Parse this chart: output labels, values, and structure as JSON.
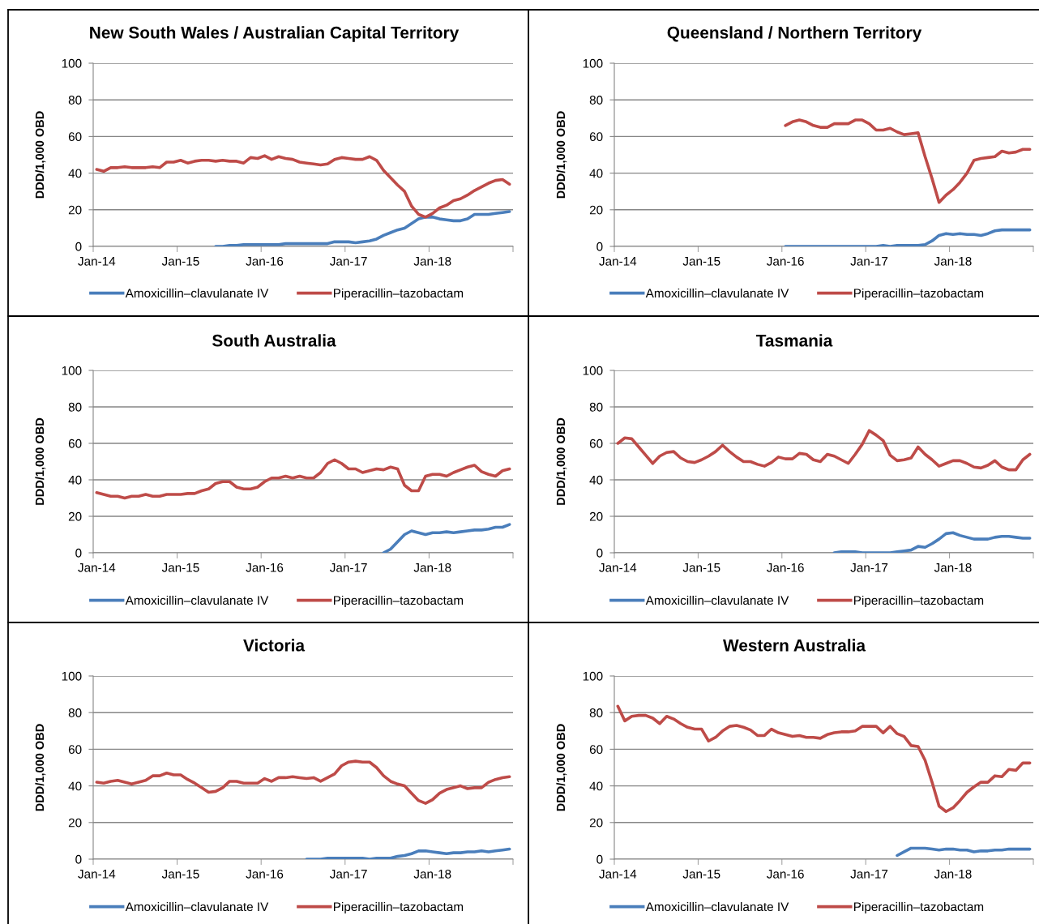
{
  "chart_data": [
    {
      "type": "line",
      "title": "New South Wales / Australian Capital Territory",
      "ylabel": "DDD/1,000 OBD",
      "categories": [
        "Jan-14",
        null,
        null,
        null,
        null,
        null,
        null,
        null,
        null,
        null,
        null,
        null,
        "Jan-15",
        null,
        null,
        null,
        null,
        null,
        null,
        null,
        null,
        null,
        null,
        null,
        "Jan-16",
        null,
        null,
        null,
        null,
        null,
        null,
        null,
        null,
        null,
        null,
        null,
        "Jan-17",
        null,
        null,
        null,
        null,
        null,
        null,
        null,
        null,
        null,
        null,
        null,
        "Jan-18",
        null,
        null,
        null,
        null,
        null,
        null,
        null,
        null,
        null,
        null,
        null
      ],
      "series": [
        {
          "name": "Amoxicillin–clavulanate IV",
          "color": "#4a7ebb",
          "values": [
            null,
            null,
            null,
            null,
            null,
            null,
            null,
            null,
            null,
            null,
            null,
            null,
            null,
            null,
            null,
            null,
            null,
            0,
            0,
            0.5,
            0.5,
            1,
            1,
            1,
            1,
            1,
            1,
            1.5,
            1.5,
            1.5,
            1.5,
            1.5,
            1.5,
            1.5,
            2.5,
            2.5,
            2.5,
            2,
            2.5,
            3,
            4,
            6,
            7.5,
            9,
            10,
            12.5,
            15,
            16,
            16,
            15,
            14.5,
            14,
            14,
            15,
            17.5,
            17.5,
            17.5,
            18,
            18.5,
            19
          ]
        },
        {
          "name": "Piperacillin–tazobactam",
          "color": "#be4b48",
          "values": [
            42,
            41,
            43,
            43,
            43.5,
            43,
            43,
            43,
            43.5,
            43,
            46,
            46,
            47,
            45.5,
            46.5,
            47,
            47,
            46.5,
            47,
            46.5,
            46.5,
            45.5,
            48.5,
            48,
            49.5,
            47.5,
            49,
            48,
            47.5,
            46,
            45.5,
            45,
            44.5,
            45,
            47.5,
            48.5,
            48,
            47.5,
            47.5,
            49,
            47,
            41.5,
            37.5,
            33.5,
            30,
            22,
            17.5,
            16,
            18,
            21,
            22.5,
            25,
            26,
            28,
            30.5,
            32.5,
            34.5,
            36,
            36.5,
            34
          ]
        }
      ],
      "ylim": [
        0,
        100
      ],
      "yticks": [
        0,
        20,
        40,
        60,
        80,
        100
      ],
      "grid": "y",
      "legend": "bottom"
    },
    {
      "type": "line",
      "title": "Queensland / Northern Territory",
      "ylabel": "DDD/1,000 OBD",
      "categories": [
        "Jan-14",
        null,
        null,
        null,
        null,
        null,
        null,
        null,
        null,
        null,
        null,
        null,
        "Jan-15",
        null,
        null,
        null,
        null,
        null,
        null,
        null,
        null,
        null,
        null,
        null,
        "Jan-16",
        null,
        null,
        null,
        null,
        null,
        null,
        null,
        null,
        null,
        null,
        null,
        "Jan-17",
        null,
        null,
        null,
        null,
        null,
        null,
        null,
        null,
        null,
        null,
        null,
        "Jan-18",
        null,
        null,
        null,
        null,
        null,
        null,
        null,
        null,
        null,
        null,
        null
      ],
      "series": [
        {
          "name": "Amoxicillin–clavulanate IV",
          "color": "#4a7ebb",
          "values": [
            null,
            null,
            null,
            null,
            null,
            null,
            null,
            null,
            null,
            null,
            null,
            null,
            null,
            null,
            null,
            null,
            null,
            null,
            null,
            null,
            null,
            null,
            null,
            null,
            0,
            0,
            0,
            0,
            0,
            0,
            0,
            0,
            0,
            0,
            0,
            0,
            0,
            0,
            0.5,
            0,
            0.5,
            0.5,
            0.5,
            0.5,
            1,
            3,
            6,
            7,
            6.5,
            7,
            6.5,
            6.5,
            6,
            7,
            8.5,
            9,
            9,
            9,
            9,
            9
          ]
        },
        {
          "name": "Piperacillin–tazobactam",
          "color": "#be4b48",
          "values": [
            null,
            null,
            null,
            null,
            null,
            null,
            null,
            null,
            null,
            null,
            null,
            null,
            null,
            null,
            null,
            null,
            null,
            null,
            null,
            null,
            null,
            null,
            null,
            null,
            66,
            68,
            69,
            68,
            66,
            65,
            65,
            67,
            67,
            67,
            69,
            69,
            67,
            63.5,
            63.5,
            64.5,
            62.5,
            61,
            61.5,
            62,
            49,
            37,
            24,
            28,
            31,
            35,
            40,
            47,
            48,
            48.5,
            49,
            52,
            51,
            51.5,
            53,
            53
          ]
        }
      ],
      "ylim": [
        0,
        100
      ],
      "yticks": [
        0,
        20,
        40,
        60,
        80,
        100
      ],
      "grid": "y",
      "legend": "bottom"
    },
    {
      "type": "line",
      "title": "South Australia",
      "ylabel": "DDD/1,000 OBD",
      "categories": [
        "Jan-14",
        null,
        null,
        null,
        null,
        null,
        null,
        null,
        null,
        null,
        null,
        null,
        "Jan-15",
        null,
        null,
        null,
        null,
        null,
        null,
        null,
        null,
        null,
        null,
        null,
        "Jan-16",
        null,
        null,
        null,
        null,
        null,
        null,
        null,
        null,
        null,
        null,
        null,
        "Jan-17",
        null,
        null,
        null,
        null,
        null,
        null,
        null,
        null,
        null,
        null,
        null,
        "Jan-18",
        null,
        null,
        null,
        null,
        null,
        null,
        null,
        null,
        null,
        null,
        null
      ],
      "series": [
        {
          "name": "Amoxicillin–clavulanate IV",
          "color": "#4a7ebb",
          "values": [
            null,
            null,
            null,
            null,
            null,
            null,
            null,
            null,
            null,
            null,
            null,
            null,
            null,
            null,
            null,
            null,
            null,
            null,
            null,
            null,
            null,
            null,
            null,
            null,
            null,
            null,
            null,
            null,
            null,
            null,
            null,
            null,
            null,
            null,
            null,
            null,
            null,
            null,
            null,
            null,
            null,
            0,
            2,
            6,
            10,
            12,
            11,
            10,
            11,
            11,
            11.5,
            11,
            11.5,
            12,
            12.5,
            12.5,
            13,
            14,
            14,
            15.5
          ]
        },
        {
          "name": "Piperacillin–tazobactam",
          "color": "#be4b48",
          "values": [
            33,
            32,
            31,
            31,
            30,
            31,
            31,
            32,
            31,
            31,
            32,
            32,
            32,
            32.5,
            32.5,
            34,
            35,
            38,
            39,
            39,
            36,
            35,
            35,
            36,
            39,
            41,
            41,
            42,
            41,
            42,
            41,
            41,
            44,
            49,
            51,
            49,
            46,
            46,
            44,
            45,
            46,
            45.5,
            47,
            46,
            37,
            34,
            34,
            42,
            43,
            43,
            42,
            44,
            45.5,
            47,
            48,
            44.5,
            43,
            42,
            45,
            46
          ]
        }
      ],
      "ylim": [
        0,
        100
      ],
      "yticks": [
        0,
        20,
        40,
        60,
        80,
        100
      ],
      "grid": "y",
      "legend": "bottom"
    },
    {
      "type": "line",
      "title": "Tasmania",
      "ylabel": "DDD/1,000 OBD",
      "categories": [
        "Jan-14",
        null,
        null,
        null,
        null,
        null,
        null,
        null,
        null,
        null,
        null,
        null,
        "Jan-15",
        null,
        null,
        null,
        null,
        null,
        null,
        null,
        null,
        null,
        null,
        null,
        "Jan-16",
        null,
        null,
        null,
        null,
        null,
        null,
        null,
        null,
        null,
        null,
        null,
        "Jan-17",
        null,
        null,
        null,
        null,
        null,
        null,
        null,
        null,
        null,
        null,
        null,
        "Jan-18",
        null,
        null,
        null,
        null,
        null,
        null,
        null,
        null,
        null,
        null,
        null
      ],
      "series": [
        {
          "name": "Amoxicillin–clavulanate IV",
          "color": "#4a7ebb",
          "values": [
            null,
            null,
            null,
            null,
            null,
            null,
            null,
            null,
            null,
            null,
            null,
            null,
            null,
            null,
            null,
            null,
            null,
            null,
            null,
            null,
            null,
            null,
            null,
            null,
            null,
            null,
            null,
            null,
            null,
            null,
            null,
            0,
            0.5,
            0.5,
            0.5,
            0,
            0,
            0,
            0,
            0,
            0.5,
            1,
            1.5,
            3.5,
            3,
            5,
            7.5,
            10.5,
            11,
            9.5,
            8.5,
            7.5,
            7.5,
            7.5,
            8.5,
            9,
            9,
            8.5,
            8,
            8
          ]
        },
        {
          "name": "Piperacillin–tazobactam",
          "color": "#be4b48",
          "values": [
            60,
            63,
            62.5,
            58,
            53.5,
            49,
            53,
            55,
            55.5,
            52,
            50,
            49.5,
            51,
            53,
            55.5,
            59,
            55.5,
            52.5,
            50,
            50,
            48.5,
            47.5,
            49.5,
            52.5,
            51.5,
            51.5,
            54.5,
            54,
            51,
            50,
            54,
            53,
            51,
            49,
            54,
            59.5,
            67,
            64.5,
            61.5,
            53.5,
            50.5,
            51,
            52,
            58,
            54,
            51,
            47.5,
            49,
            50.5,
            50.5,
            49,
            47,
            46.5,
            48,
            50.5,
            47,
            45.5,
            45.5,
            51,
            54
          ]
        }
      ],
      "ylim": [
        0,
        100
      ],
      "yticks": [
        0,
        20,
        40,
        60,
        80,
        100
      ],
      "grid": "y",
      "legend": "bottom"
    },
    {
      "type": "line",
      "title": "Victoria",
      "ylabel": "DDD/1,000 OBD",
      "categories": [
        "Jan-14",
        null,
        null,
        null,
        null,
        null,
        null,
        null,
        null,
        null,
        null,
        null,
        "Jan-15",
        null,
        null,
        null,
        null,
        null,
        null,
        null,
        null,
        null,
        null,
        null,
        "Jan-16",
        null,
        null,
        null,
        null,
        null,
        null,
        null,
        null,
        null,
        null,
        null,
        "Jan-17",
        null,
        null,
        null,
        null,
        null,
        null,
        null,
        null,
        null,
        null,
        null,
        "Jan-18",
        null,
        null,
        null,
        null,
        null,
        null,
        null,
        null,
        null,
        null,
        null
      ],
      "series": [
        {
          "name": "Amoxicillin–clavulanate IV",
          "color": "#4a7ebb",
          "values": [
            null,
            null,
            null,
            null,
            null,
            null,
            null,
            null,
            null,
            null,
            null,
            null,
            null,
            null,
            null,
            null,
            null,
            null,
            null,
            null,
            null,
            null,
            null,
            null,
            null,
            null,
            null,
            null,
            null,
            null,
            0,
            0,
            0,
            0.5,
            0.5,
            0.5,
            0.5,
            0.5,
            0.5,
            0,
            0.5,
            0.5,
            0.5,
            1.5,
            2,
            3,
            4.5,
            4.5,
            4,
            3.5,
            3,
            3.5,
            3.5,
            4,
            4,
            4.5,
            4,
            4.5,
            5,
            5.5
          ]
        },
        {
          "name": "Piperacillin–tazobactam",
          "color": "#be4b48",
          "values": [
            42,
            41.5,
            42.5,
            43,
            42,
            41,
            42,
            43,
            45.5,
            45.5,
            47,
            46,
            46,
            43.5,
            41.5,
            39,
            36.5,
            37,
            39,
            42.5,
            42.5,
            41.5,
            41.5,
            41.5,
            44,
            42.5,
            44.5,
            44.5,
            45,
            44.5,
            44,
            44.5,
            42.5,
            44.5,
            46.5,
            51,
            53,
            53.5,
            53,
            53,
            50,
            45.5,
            42.5,
            41,
            40,
            36,
            32,
            30.5,
            32.5,
            36,
            38,
            39,
            40,
            38.5,
            39,
            39,
            42,
            43.5,
            44.5,
            45
          ]
        }
      ],
      "ylim": [
        0,
        100
      ],
      "yticks": [
        0,
        20,
        40,
        60,
        80,
        100
      ],
      "grid": "y",
      "legend": "bottom"
    },
    {
      "type": "line",
      "title": "Western Australia",
      "ylabel": "DDD/1,000 OBD",
      "categories": [
        "Jan-14",
        null,
        null,
        null,
        null,
        null,
        null,
        null,
        null,
        null,
        null,
        null,
        "Jan-15",
        null,
        null,
        null,
        null,
        null,
        null,
        null,
        null,
        null,
        null,
        null,
        "Jan-16",
        null,
        null,
        null,
        null,
        null,
        null,
        null,
        null,
        null,
        null,
        null,
        "Jan-17",
        null,
        null,
        null,
        null,
        null,
        null,
        null,
        null,
        null,
        null,
        null,
        "Jan-18",
        null,
        null,
        null,
        null,
        null,
        null,
        null,
        null,
        null,
        null,
        null
      ],
      "series": [
        {
          "name": "Amoxicillin–clavulanate IV",
          "color": "#4a7ebb",
          "values": [
            null,
            null,
            null,
            null,
            null,
            null,
            null,
            null,
            null,
            null,
            null,
            null,
            null,
            null,
            null,
            null,
            null,
            null,
            null,
            null,
            null,
            null,
            null,
            null,
            null,
            null,
            null,
            null,
            null,
            null,
            null,
            null,
            null,
            null,
            null,
            null,
            null,
            null,
            null,
            null,
            2,
            4,
            6,
            6,
            6,
            5.5,
            5,
            5.5,
            5.5,
            5,
            5,
            4,
            4.5,
            4.5,
            5,
            5,
            5.5,
            5.5,
            5.5,
            5.5
          ]
        },
        {
          "name": "Piperacillin–tazobactam",
          "color": "#be4b48",
          "values": [
            83.5,
            75.5,
            78,
            78.5,
            78.5,
            77,
            74,
            78,
            76.5,
            74,
            72,
            71,
            71,
            64.5,
            66.5,
            70,
            72.5,
            73,
            72,
            70.5,
            67.5,
            67.5,
            71,
            69,
            68,
            67,
            67.5,
            66.5,
            66.5,
            66,
            68,
            69,
            69.5,
            69.5,
            70,
            72.5,
            72.5,
            72.5,
            69,
            72.5,
            68.5,
            67,
            62,
            61.5,
            54,
            42,
            29,
            26,
            28,
            32,
            36.5,
            39.5,
            42,
            42,
            45.5,
            45,
            49,
            48.5,
            52.5,
            52.5
          ]
        }
      ],
      "ylim": [
        0,
        100
      ],
      "yticks": [
        0,
        20,
        40,
        60,
        80,
        100
      ],
      "grid": "y",
      "legend": "bottom"
    }
  ]
}
